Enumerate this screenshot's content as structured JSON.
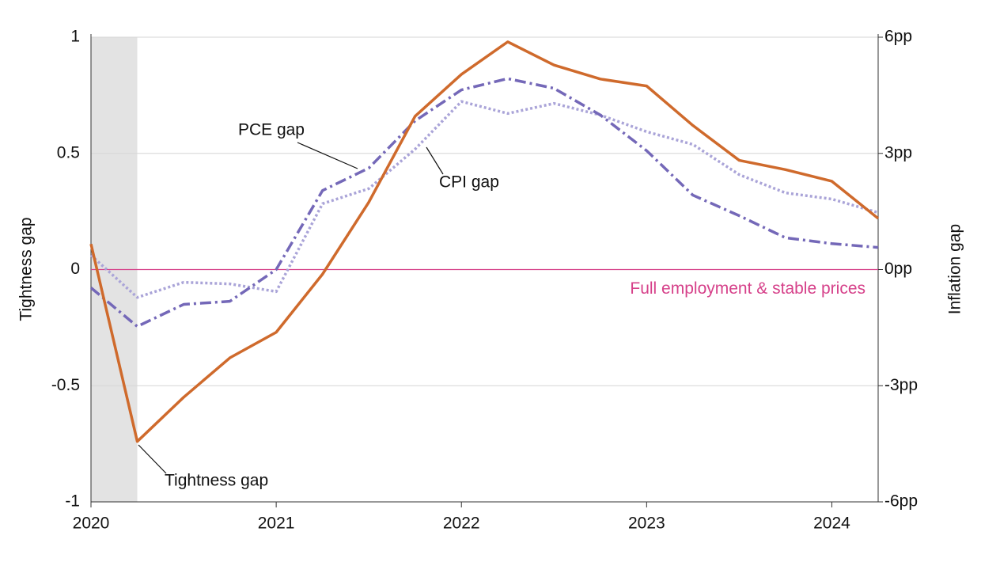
{
  "chart_data": {
    "type": "line",
    "y_label": "Tightness gap",
    "y2_label": "Inflation gap",
    "x": [
      2020,
      2020.25,
      2020.5,
      2020.75,
      2021,
      2021.25,
      2021.5,
      2021.75,
      2022,
      2022.25,
      2022.5,
      2022.75,
      2023,
      2023.25,
      2023.5,
      2023.75,
      2024,
      2024.25
    ],
    "xlim": [
      2020,
      2024.25
    ],
    "xticks": [
      2020,
      2021,
      2022,
      2023,
      2024
    ],
    "ylim": [
      -1,
      1
    ],
    "yticks": [
      -1,
      -0.5,
      0,
      0.5,
      1
    ],
    "y2lim": [
      -6,
      6
    ],
    "y2ticks": [
      {
        "value": -6,
        "label": "-6pp"
      },
      {
        "value": -3,
        "label": "-3pp"
      },
      {
        "value": 0,
        "label": "0pp"
      },
      {
        "value": 3,
        "label": "3pp"
      },
      {
        "value": 6,
        "label": "6pp"
      }
    ],
    "grid": true,
    "shaded_x": [
      2020,
      2020.25
    ],
    "reference_line": {
      "y": 0,
      "label": "Full employment & stable prices",
      "color": "#d6418a"
    },
    "series": [
      {
        "name": "Tightness gap",
        "color": "#cf6a2c",
        "style": "solid",
        "values": [
          0.11,
          -0.74,
          -0.55,
          -0.38,
          -0.27,
          -0.02,
          0.29,
          0.66,
          0.84,
          0.98,
          0.88,
          0.82,
          0.79,
          0.62,
          0.47,
          0.43,
          0.38,
          0.22
        ]
      },
      {
        "name": "PCE gap",
        "color": "#7468b8",
        "style": "dashdot",
        "axis": "y2",
        "values": [
          -0.47,
          -1.47,
          -0.9,
          -0.82,
          0,
          2.04,
          2.62,
          3.84,
          4.64,
          4.93,
          4.68,
          3.99,
          3.07,
          1.92,
          1.39,
          0.82,
          0.67,
          0.57
        ]
      },
      {
        "name": "CPI gap",
        "color": "#aaa4d8",
        "style": "dotted",
        "axis": "y2",
        "values": [
          0.37,
          -0.72,
          -0.33,
          -0.37,
          -0.57,
          1.7,
          2.09,
          3.11,
          4.34,
          4.03,
          4.29,
          3.99,
          3.56,
          3.23,
          2.45,
          1.98,
          1.82,
          1.47
        ]
      }
    ]
  }
}
